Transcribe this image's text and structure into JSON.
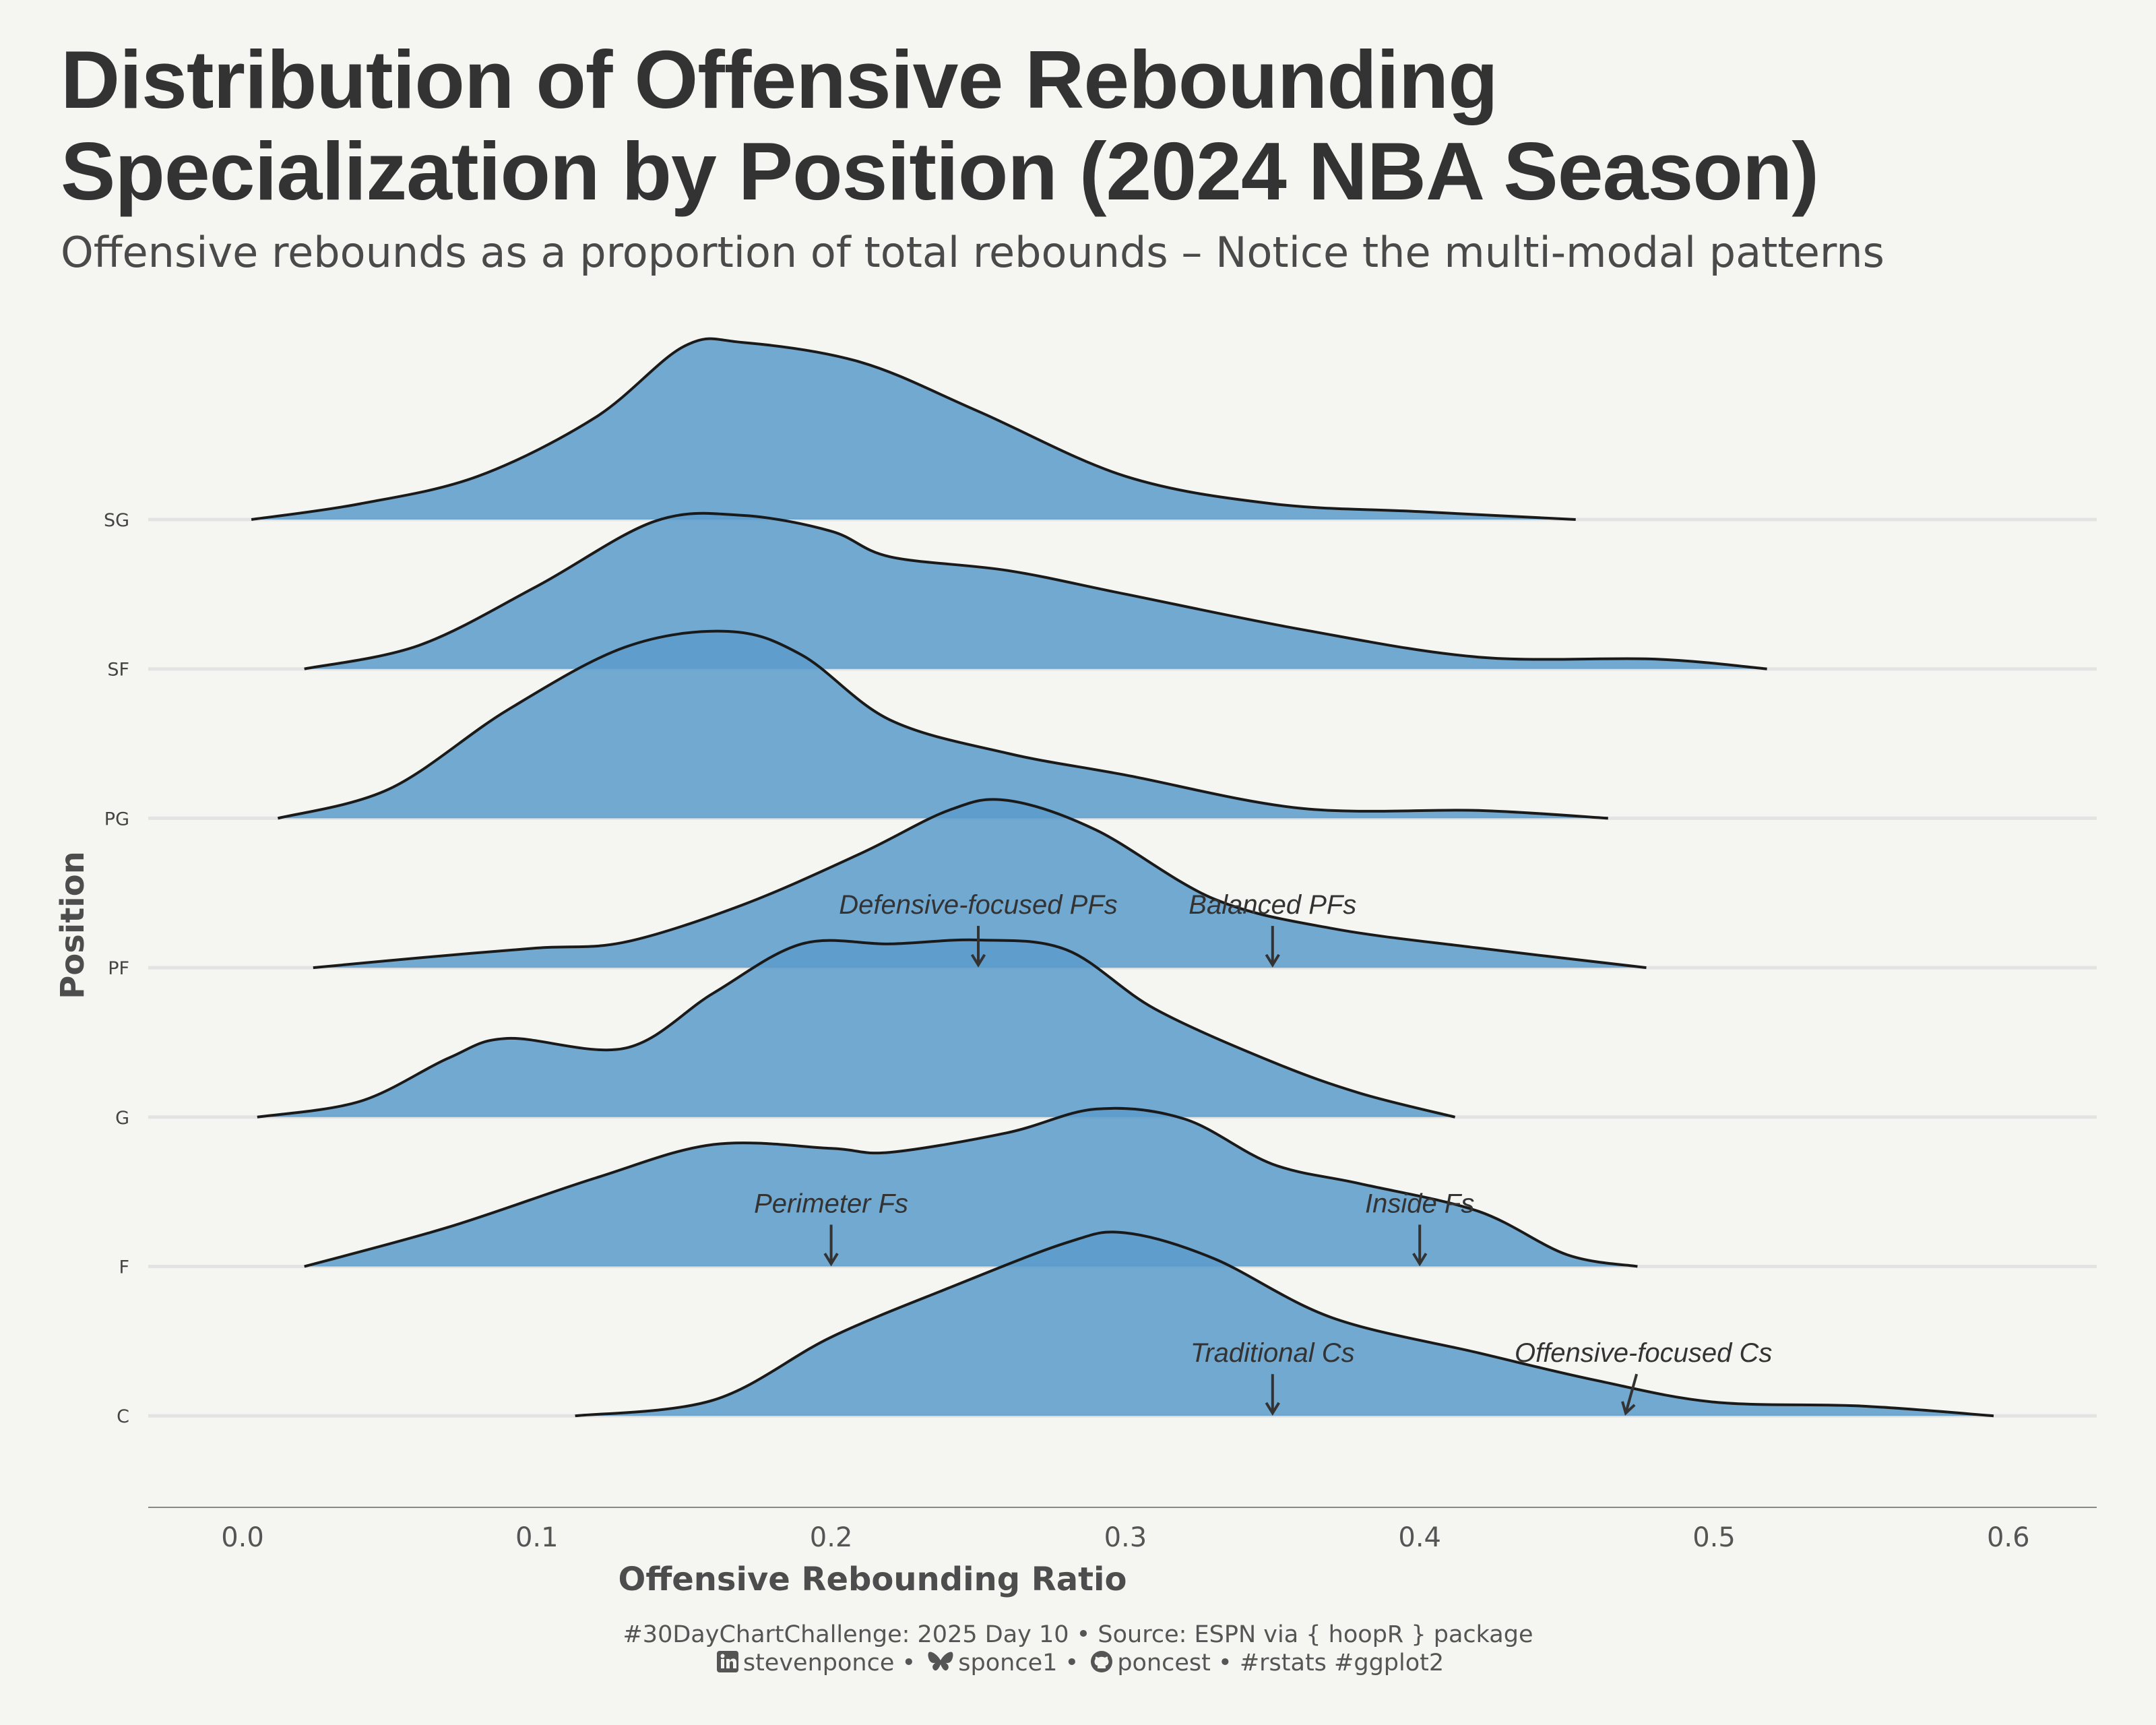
{
  "title": "Distribution of Offensive Rebounding Specialization by Position (2024 NBA Season)",
  "subtitle": "Offensive rebounds as a proportion of total rebounds – Notice the multi-modal patterns",
  "caption": {
    "line1": "#30DayChartChallenge: 2025 Day 10 • Source: ESPN via { hoopR } package",
    "linkedin": "stevenponce",
    "bluesky": "sponce1",
    "github": "poncest",
    "tags": "#rstats #ggplot2",
    "icons": [
      "linkedin-icon",
      "bluesky-butterfly-icon",
      "github-icon"
    ],
    "sep": "•"
  },
  "chart_data": {
    "type": "area",
    "subtype": "ridgeline-density",
    "xlabel": "Offensive Rebounding Ratio",
    "ylabel": "Position",
    "xlim": [
      0.0,
      0.6
    ],
    "x_ticks": [
      "0.0",
      "0.1",
      "0.2",
      "0.3",
      "0.4",
      "0.5",
      "0.6"
    ],
    "fill_color": "#5b9bcb",
    "line_color": "#1a1a1a",
    "grid": "horizontal baselines only",
    "series": [
      {
        "name": "SG",
        "pts": [
          [
            0.003,
            0.0
          ],
          [
            0.04,
            0.08
          ],
          [
            0.08,
            0.22
          ],
          [
            0.12,
            0.52
          ],
          [
            0.15,
            0.88
          ],
          [
            0.17,
            0.9
          ],
          [
            0.21,
            0.8
          ],
          [
            0.25,
            0.55
          ],
          [
            0.3,
            0.22
          ],
          [
            0.35,
            0.08
          ],
          [
            0.4,
            0.04
          ],
          [
            0.453,
            0.0
          ]
        ]
      },
      {
        "name": "SF",
        "pts": [
          [
            0.021,
            0.0
          ],
          [
            0.06,
            0.12
          ],
          [
            0.1,
            0.42
          ],
          [
            0.14,
            0.75
          ],
          [
            0.17,
            0.78
          ],
          [
            0.2,
            0.7
          ],
          [
            0.22,
            0.57
          ],
          [
            0.26,
            0.5
          ],
          [
            0.3,
            0.38
          ],
          [
            0.36,
            0.2
          ],
          [
            0.42,
            0.06
          ],
          [
            0.48,
            0.05
          ],
          [
            0.518,
            0.0
          ]
        ]
      },
      {
        "name": "PG",
        "pts": [
          [
            0.012,
            0.0
          ],
          [
            0.05,
            0.15
          ],
          [
            0.09,
            0.55
          ],
          [
            0.13,
            0.87
          ],
          [
            0.165,
            0.95
          ],
          [
            0.19,
            0.83
          ],
          [
            0.22,
            0.5
          ],
          [
            0.26,
            0.33
          ],
          [
            0.3,
            0.22
          ],
          [
            0.36,
            0.05
          ],
          [
            0.42,
            0.04
          ],
          [
            0.464,
            0.0
          ]
        ]
      },
      {
        "name": "PF",
        "pts": [
          [
            0.024,
            0.0
          ],
          [
            0.06,
            0.05
          ],
          [
            0.1,
            0.1
          ],
          [
            0.13,
            0.13
          ],
          [
            0.17,
            0.32
          ],
          [
            0.21,
            0.58
          ],
          [
            0.24,
            0.8
          ],
          [
            0.26,
            0.85
          ],
          [
            0.29,
            0.7
          ],
          [
            0.33,
            0.35
          ],
          [
            0.37,
            0.2
          ],
          [
            0.42,
            0.1
          ],
          [
            0.477,
            0.0
          ]
        ]
      },
      {
        "name": "G",
        "pts": [
          [
            0.005,
            0.0
          ],
          [
            0.04,
            0.08
          ],
          [
            0.07,
            0.3
          ],
          [
            0.09,
            0.4
          ],
          [
            0.13,
            0.35
          ],
          [
            0.16,
            0.63
          ],
          [
            0.19,
            0.88
          ],
          [
            0.22,
            0.88
          ],
          [
            0.25,
            0.9
          ],
          [
            0.28,
            0.85
          ],
          [
            0.31,
            0.55
          ],
          [
            0.35,
            0.28
          ],
          [
            0.38,
            0.12
          ],
          [
            0.412,
            0.0
          ]
        ]
      },
      {
        "name": "F",
        "pts": [
          [
            0.021,
            0.0
          ],
          [
            0.07,
            0.2
          ],
          [
            0.12,
            0.45
          ],
          [
            0.16,
            0.62
          ],
          [
            0.2,
            0.6
          ],
          [
            0.22,
            0.58
          ],
          [
            0.26,
            0.68
          ],
          [
            0.29,
            0.8
          ],
          [
            0.32,
            0.75
          ],
          [
            0.35,
            0.52
          ],
          [
            0.38,
            0.42
          ],
          [
            0.42,
            0.28
          ],
          [
            0.45,
            0.06
          ],
          [
            0.474,
            0.0
          ]
        ]
      },
      {
        "name": "C",
        "pts": [
          [
            0.113,
            0.0
          ],
          [
            0.16,
            0.08
          ],
          [
            0.2,
            0.4
          ],
          [
            0.24,
            0.65
          ],
          [
            0.28,
            0.88
          ],
          [
            0.3,
            0.93
          ],
          [
            0.33,
            0.8
          ],
          [
            0.37,
            0.5
          ],
          [
            0.42,
            0.32
          ],
          [
            0.46,
            0.18
          ],
          [
            0.5,
            0.07
          ],
          [
            0.55,
            0.05
          ],
          [
            0.595,
            0.0
          ]
        ]
      }
    ],
    "annotations": [
      {
        "series": "PF",
        "text": "Defensive-focused PFs",
        "x": 0.25,
        "label_x": 0.25
      },
      {
        "series": "PF",
        "text": "Balanced PFs",
        "x": 0.35,
        "label_x": 0.35
      },
      {
        "series": "F",
        "text": "Perimeter Fs",
        "x": 0.2,
        "label_x": 0.2
      },
      {
        "series": "F",
        "text": "Inside Fs",
        "x": 0.4,
        "label_x": 0.4
      },
      {
        "series": "C",
        "text": "Traditional Cs",
        "x": 0.35,
        "label_x": 0.35
      },
      {
        "series": "C",
        "text": "Offensive-focused Cs",
        "x": 0.47,
        "label_x": 0.476
      }
    ]
  }
}
